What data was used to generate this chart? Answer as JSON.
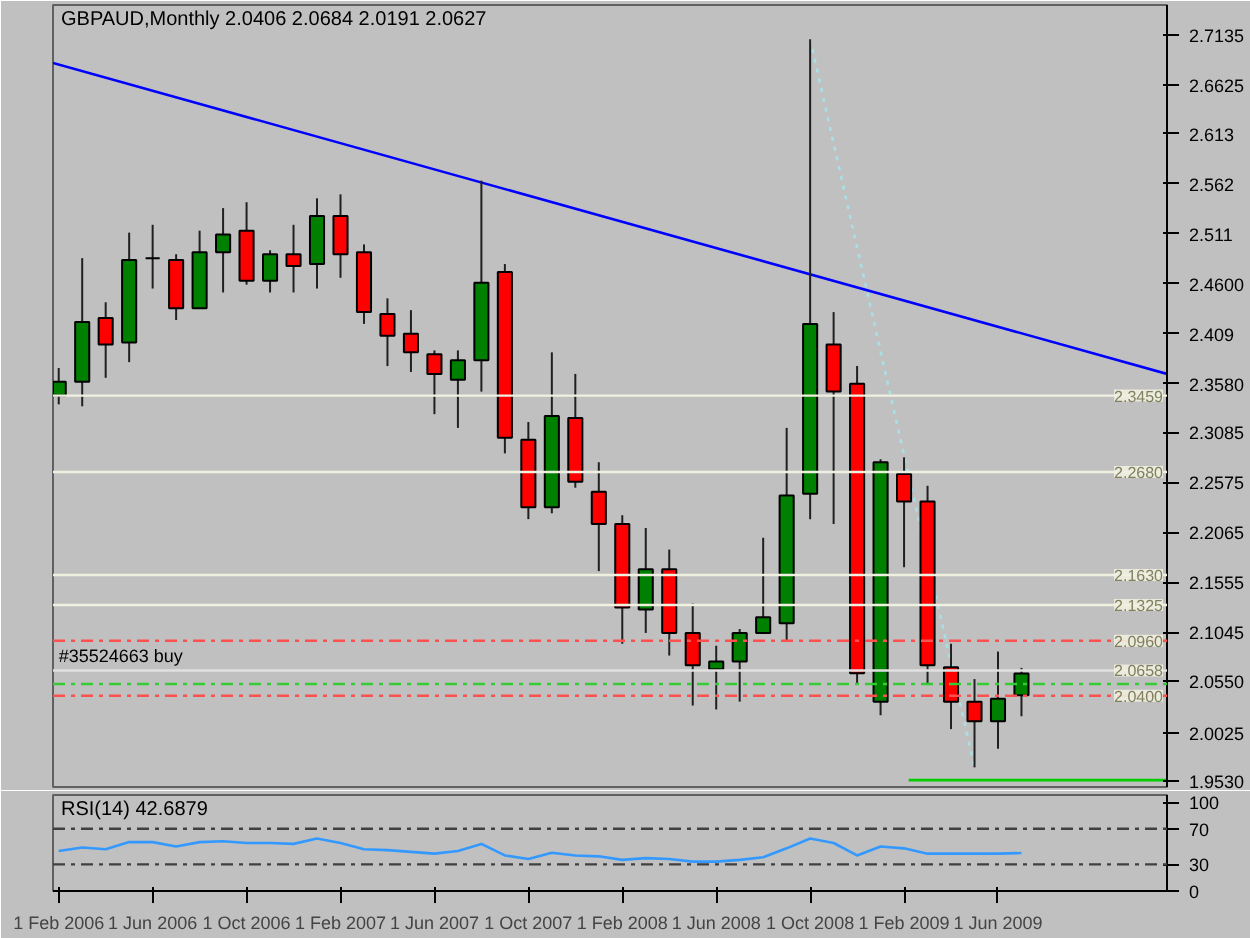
{
  "chart_data": [
    {
      "type": "candlestick",
      "title": "GBPAUD,Monthly 2.0406 2.0684 2.0191 2.0627",
      "x": [
        "2006-02",
        "2006-03",
        "2006-04",
        "2006-05",
        "2006-06",
        "2006-07",
        "2006-08",
        "2006-09",
        "2006-10",
        "2006-11",
        "2006-12",
        "2007-01",
        "2007-02",
        "2007-03",
        "2007-04",
        "2007-05",
        "2007-06",
        "2007-07",
        "2007-08",
        "2007-09",
        "2007-10",
        "2007-11",
        "2007-12",
        "2008-01",
        "2008-02",
        "2008-03",
        "2008-04",
        "2008-05",
        "2008-06",
        "2008-07",
        "2008-08",
        "2008-09",
        "2008-10",
        "2008-11",
        "2008-12",
        "2009-01",
        "2009-02",
        "2009-03",
        "2009-04",
        "2009-05",
        "2009-06",
        "2009-07"
      ],
      "ohlc": [
        [
          2.346,
          2.374,
          2.337,
          2.36
        ],
        [
          2.36,
          2.486,
          2.335,
          2.421
        ],
        [
          2.425,
          2.441,
          2.364,
          2.398
        ],
        [
          2.4,
          2.512,
          2.38,
          2.484
        ],
        [
          2.486,
          2.52,
          2.455,
          2.486
        ],
        [
          2.484,
          2.49,
          2.423,
          2.435
        ],
        [
          2.435,
          2.514,
          2.435,
          2.492
        ],
        [
          2.492,
          2.537,
          2.451,
          2.51
        ],
        [
          2.514,
          2.543,
          2.459,
          2.463
        ],
        [
          2.463,
          2.494,
          2.451,
          2.49
        ],
        [
          2.49,
          2.52,
          2.451,
          2.478
        ],
        [
          2.48,
          2.547,
          2.455,
          2.529
        ],
        [
          2.529,
          2.551,
          2.466,
          2.49
        ],
        [
          2.492,
          2.5,
          2.419,
          2.431
        ],
        [
          2.429,
          2.445,
          2.376,
          2.407
        ],
        [
          2.409,
          2.433,
          2.37,
          2.39
        ],
        [
          2.388,
          2.392,
          2.327,
          2.368
        ],
        [
          2.362,
          2.392,
          2.313,
          2.382
        ],
        [
          2.382,
          2.565,
          2.35,
          2.461
        ],
        [
          2.472,
          2.48,
          2.287,
          2.303
        ],
        [
          2.301,
          2.319,
          2.22,
          2.232
        ],
        [
          2.232,
          2.39,
          2.226,
          2.325
        ],
        [
          2.323,
          2.368,
          2.252,
          2.258
        ],
        [
          2.248,
          2.278,
          2.167,
          2.215
        ],
        [
          2.215,
          2.224,
          2.093,
          2.13
        ],
        [
          2.128,
          2.211,
          2.104,
          2.169
        ],
        [
          2.169,
          2.189,
          2.081,
          2.104
        ],
        [
          2.104,
          2.134,
          2.03,
          2.071
        ],
        [
          2.067,
          2.091,
          2.026,
          2.075
        ],
        [
          2.075,
          2.108,
          2.034,
          2.104
        ],
        [
          2.104,
          2.201,
          2.104,
          2.12
        ],
        [
          2.114,
          2.313,
          2.096,
          2.244
        ],
        [
          2.246,
          2.709,
          2.22,
          2.419
        ],
        [
          2.398,
          2.431,
          2.215,
          2.35
        ],
        [
          2.358,
          2.376,
          2.053,
          2.063
        ],
        [
          2.034,
          2.281,
          2.02,
          2.278
        ],
        [
          2.266,
          2.283,
          2.171,
          2.238
        ],
        [
          2.238,
          2.254,
          2.051,
          2.071
        ],
        [
          2.069,
          2.093,
          2.006,
          2.034
        ],
        [
          2.034,
          2.057,
          1.967,
          2.014
        ],
        [
          2.014,
          2.085,
          1.986,
          2.037
        ],
        [
          2.0406,
          2.0684,
          2.0191,
          2.0627
        ]
      ],
      "colors": [
        "#008000",
        "#008000",
        "#ff0000",
        "#008000",
        "#000000",
        "#ff0000",
        "#008000",
        "#008000",
        "#ff0000",
        "#008000",
        "#ff0000",
        "#008000",
        "#ff0000",
        "#ff0000",
        "#ff0000",
        "#ff0000",
        "#ff0000",
        "#008000",
        "#008000",
        "#ff0000",
        "#ff0000",
        "#008000",
        "#ff0000",
        "#ff0000",
        "#ff0000",
        "#008000",
        "#ff0000",
        "#ff0000",
        "#008000",
        "#008000",
        "#008000",
        "#008000",
        "#008000",
        "#ff0000",
        "#ff0000",
        "#008000",
        "#ff0000",
        "#ff0000",
        "#ff0000",
        "#ff0000",
        "#008000",
        "#008000"
      ],
      "series": [
        {
          "type": "line",
          "x": [
            "2006-01-24",
            "2010-01-07"
          ],
          "values": [
            2.685,
            2.368
          ],
          "color": "#0000ff",
          "line_style": "solid"
        },
        {
          "type": "line",
          "x": [
            "2008-10",
            "2009-05"
          ],
          "values": [
            2.709,
            1.967
          ],
          "color": "#a8e0e8",
          "line_style": "dotted"
        },
        {
          "type": "line",
          "x": [
            "2009-02-07",
            "2010-01-07"
          ],
          "values": [
            1.954,
            1.954
          ],
          "color": "#00cc00",
          "line_style": "solid"
        }
      ],
      "ref_lines": [
        {
          "axis": "y",
          "value": 2.3459,
          "label": "2.3459",
          "color": "#f0f0e0",
          "line_style": "solid"
        },
        {
          "axis": "y",
          "value": 2.268,
          "label": "2.2680",
          "color": "#f0f0e0",
          "line_style": "solid"
        },
        {
          "axis": "y",
          "value": 2.163,
          "label": "2.1630",
          "color": "#f0f0e0",
          "line_style": "solid"
        },
        {
          "axis": "y",
          "value": 2.1325,
          "label": "2.1325",
          "color": "#f0f0e0",
          "line_style": "solid"
        },
        {
          "axis": "y",
          "value": 2.096,
          "label": "2.0960",
          "color": "#ff5050",
          "line_style": "dashed"
        },
        {
          "axis": "y",
          "value": 2.0658,
          "label": "2.0658",
          "color": "#e0e0e0",
          "line_style": "solid"
        },
        {
          "axis": "y",
          "value": 2.052,
          "label": null,
          "color": "#33cc33",
          "line_style": "dashed"
        },
        {
          "axis": "y",
          "value": 2.04,
          "label": "2.0400",
          "color": "#ff5050",
          "line_style": "dashed"
        }
      ],
      "annotations": [
        {
          "text": "#35524663 buy",
          "x": "2006-02",
          "y": 2.0658
        }
      ],
      "xlim": [
        "2006-01-24",
        "2010-01-07"
      ],
      "ylim": [
        1.947,
        2.744
      ],
      "yticks": [
        2.7135,
        2.6625,
        2.613,
        2.562,
        2.511,
        {
          "value": 2.46,
          "label": "2.4600"
        },
        2.409,
        {
          "value": 2.358,
          "label": "2.3580"
        },
        2.3085,
        2.2575,
        2.2065,
        2.1555,
        2.1045,
        {
          "value": 2.055,
          "label": "2.0550"
        },
        2.0025,
        {
          "value": 1.953,
          "label": "1.9530"
        }
      ],
      "tick_labels": "y",
      "grid": false
    },
    {
      "type": "line",
      "title": "RSI(14) 42.6879",
      "x": [
        "2006-02",
        "2006-03",
        "2006-04",
        "2006-05",
        "2006-06",
        "2006-07",
        "2006-08",
        "2006-09",
        "2006-10",
        "2006-11",
        "2006-12",
        "2007-01",
        "2007-02",
        "2007-03",
        "2007-04",
        "2007-05",
        "2007-06",
        "2007-07",
        "2007-08",
        "2007-09",
        "2007-10",
        "2007-11",
        "2007-12",
        "2008-01",
        "2008-02",
        "2008-03",
        "2008-04",
        "2008-05",
        "2008-06",
        "2008-07",
        "2008-08",
        "2008-09",
        "2008-10",
        "2008-11",
        "2008-12",
        "2009-01",
        "2009-02",
        "2009-03",
        "2009-04",
        "2009-05",
        "2009-06",
        "2009-07"
      ],
      "series": [
        {
          "color": "#3399ff",
          "values": [
            45,
            49,
            47,
            55,
            55,
            50,
            55,
            56,
            54,
            54,
            53,
            59,
            54,
            47,
            46,
            44,
            42,
            45,
            53,
            40,
            36,
            43,
            40,
            39,
            35,
            37,
            36,
            33,
            33,
            35,
            38,
            48,
            59,
            54,
            40,
            50,
            48,
            42,
            42,
            42,
            42,
            42.6879
          ]
        }
      ],
      "ref_lines": [
        {
          "axis": "y",
          "value": 70,
          "label": null,
          "color": "#404040",
          "line_style": "dashed"
        },
        {
          "axis": "y",
          "value": 30,
          "label": null,
          "color": "#404040",
          "line_style": "dashed"
        }
      ],
      "xlim": [
        "2006-01-24",
        "2010-01-07"
      ],
      "ylim": [
        0,
        108
      ],
      "yticks": [
        0,
        30,
        70,
        100
      ],
      "xticks": [
        {
          "value": "2006-02",
          "label": "1 Feb 2006"
        },
        {
          "value": "2006-06",
          "label": "1 Jun 2006"
        },
        {
          "value": "2006-10",
          "label": "1 Oct 2006"
        },
        {
          "value": "2007-02",
          "label": "1 Feb 2007"
        },
        {
          "value": "2007-06",
          "label": "1 Jun 2007"
        },
        {
          "value": "2007-10",
          "label": "1 Oct 2007"
        },
        {
          "value": "2008-02",
          "label": "1 Feb 2008"
        },
        {
          "value": "2008-06",
          "label": "1 Jun 2008"
        },
        {
          "value": "2008-10",
          "label": "1 Oct 2008"
        },
        {
          "value": "2009-02",
          "label": "1 Feb 2009"
        },
        {
          "value": "2009-06",
          "label": "1 Jun 2009"
        }
      ],
      "grid": false
    }
  ]
}
